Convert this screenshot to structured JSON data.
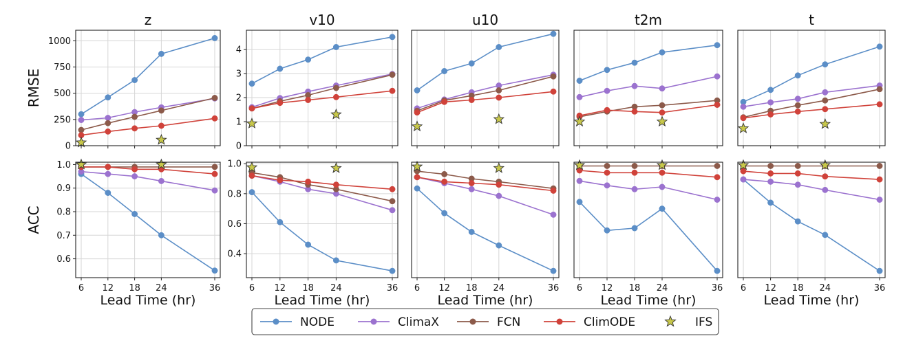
{
  "chart_data": {
    "type": "line",
    "x": [
      6,
      12,
      18,
      24,
      36
    ],
    "x_ticks": [
      "6",
      "12",
      "18",
      "24",
      "36"
    ],
    "xlabel": "Lead Time (hr)",
    "row_labels": [
      "RMSE",
      "ACC"
    ],
    "legend": {
      "placement": "bottom-center",
      "entries": [
        {
          "name": "NODE",
          "color": "#5b8ec7",
          "marker": "circle"
        },
        {
          "name": "ClimaX",
          "color": "#9b72cf",
          "marker": "circle"
        },
        {
          "name": "FCN",
          "color": "#8c5a4a",
          "marker": "circle"
        },
        {
          "name": "ClimODE",
          "color": "#d0423a",
          "marker": "circle"
        },
        {
          "name": "IFS",
          "color": "#c8c84a",
          "marker": "star"
        }
      ]
    },
    "grid": true,
    "panels": [
      {
        "variable": "z",
        "rmse": {
          "ylim": [
            0,
            1100
          ],
          "yticks": [
            0,
            250,
            500,
            750,
            1000
          ],
          "NODE": [
            300,
            460,
            625,
            875,
            1025
          ],
          "ClimaX": [
            245,
            265,
            320,
            365,
            450
          ],
          "FCN": [
            150,
            215,
            275,
            335,
            455
          ],
          "ClimODE": [
            100,
            135,
            165,
            190,
            260
          ],
          "IFS": [
            {
              "x": 6,
              "y": 30
            },
            {
              "x": 24,
              "y": 55
            }
          ]
        },
        "acc": {
          "ylim": [
            0.52,
            1.01
          ],
          "yticks": [
            0.6,
            0.7,
            0.8,
            0.9,
            1.0
          ],
          "ytick_labels": [
            "0.6",
            "0.7",
            "0.8",
            "0.9",
            "1.0"
          ],
          "NODE": [
            0.96,
            0.88,
            0.79,
            0.7,
            0.55
          ],
          "ClimaX": [
            0.97,
            0.96,
            0.95,
            0.93,
            0.89
          ],
          "FCN": [
            0.99,
            0.99,
            0.99,
            0.99,
            0.99
          ],
          "ClimODE": [
            0.99,
            0.99,
            0.98,
            0.98,
            0.96
          ],
          "IFS": [
            {
              "x": 6,
              "y": 1.0
            },
            {
              "x": 24,
              "y": 1.0
            }
          ]
        }
      },
      {
        "variable": "v10",
        "rmse": {
          "ylim": [
            0,
            4.8
          ],
          "yticks": [
            0,
            1,
            2,
            3,
            4
          ],
          "NODE": [
            2.58,
            3.2,
            3.58,
            4.1,
            4.52
          ],
          "ClimaX": [
            1.6,
            1.98,
            2.25,
            2.5,
            2.98
          ],
          "FCN": [
            1.55,
            1.85,
            2.1,
            2.4,
            2.95
          ],
          "ClimODE": [
            1.55,
            1.78,
            1.9,
            2.02,
            2.28
          ],
          "IFS": [
            {
              "x": 6,
              "y": 0.92
            },
            {
              "x": 24,
              "y": 1.3
            }
          ]
        },
        "acc": {
          "ylim": [
            0.24,
            1.01
          ],
          "yticks": [
            0.4,
            0.6,
            0.8,
            1.0
          ],
          "ytick_labels": [
            "0.4",
            "0.6",
            "0.8",
            "1.0"
          ],
          "NODE": [
            0.81,
            0.61,
            0.46,
            0.355,
            0.285
          ],
          "ClimaX": [
            0.92,
            0.88,
            0.83,
            0.8,
            0.69
          ],
          "FCN": [
            0.94,
            0.91,
            0.86,
            0.83,
            0.75
          ],
          "ClimODE": [
            0.92,
            0.89,
            0.88,
            0.86,
            0.83
          ],
          "IFS": [
            {
              "x": 6,
              "y": 0.975
            },
            {
              "x": 24,
              "y": 0.97
            }
          ]
        }
      },
      {
        "variable": "u10",
        "rmse": {
          "ylim": [
            0,
            4.8
          ],
          "yticks": [],
          "NODE": [
            2.3,
            3.1,
            3.42,
            4.1,
            4.65
          ],
          "ClimaX": [
            1.55,
            1.92,
            2.22,
            2.5,
            2.95
          ],
          "FCN": [
            1.45,
            1.88,
            2.08,
            2.3,
            2.88
          ],
          "ClimODE": [
            1.38,
            1.82,
            1.9,
            2.0,
            2.25
          ],
          "IFS": [
            {
              "x": 6,
              "y": 0.8
            },
            {
              "x": 24,
              "y": 1.1
            }
          ]
        },
        "acc": {
          "ylim": [
            0.24,
            1.01
          ],
          "yticks": [],
          "NODE": [
            0.835,
            0.67,
            0.545,
            0.455,
            0.285
          ],
          "ClimaX": [
            0.91,
            0.87,
            0.83,
            0.785,
            0.66
          ],
          "FCN": [
            0.95,
            0.93,
            0.9,
            0.88,
            0.835
          ],
          "ClimODE": [
            0.91,
            0.88,
            0.87,
            0.86,
            0.82
          ],
          "IFS": [
            {
              "x": 6,
              "y": 0.98
            },
            {
              "x": 24,
              "y": 0.97
            }
          ]
        }
      },
      {
        "variable": "t2m",
        "rmse": {
          "ylim": [
            0,
            4.8
          ],
          "yticks": [],
          "NODE": [
            2.7,
            3.15,
            3.45,
            3.88,
            4.18
          ],
          "ClimaX": [
            2.02,
            2.28,
            2.48,
            2.38,
            2.88
          ],
          "FCN": [
            1.2,
            1.42,
            1.62,
            1.68,
            1.88
          ],
          "ClimODE": [
            1.25,
            1.48,
            1.42,
            1.38,
            1.7
          ],
          "IFS": [
            {
              "x": 6,
              "y": 1.0
            },
            {
              "x": 24,
              "y": 1.0
            }
          ]
        },
        "acc": {
          "ylim": [
            0.24,
            1.01
          ],
          "yticks": [],
          "NODE": [
            0.745,
            0.555,
            0.57,
            0.7,
            0.285
          ],
          "ClimaX": [
            0.885,
            0.855,
            0.83,
            0.845,
            0.76
          ],
          "FCN": [
            0.985,
            0.985,
            0.985,
            0.985,
            0.985
          ],
          "ClimODE": [
            0.955,
            0.94,
            0.94,
            0.94,
            0.91
          ],
          "IFS": [
            {
              "x": 6,
              "y": 0.99
            },
            {
              "x": 24,
              "y": 0.99
            }
          ]
        }
      },
      {
        "variable": "t",
        "rmse": {
          "ylim": [
            0,
            4.8
          ],
          "yticks": [],
          "NODE": [
            1.82,
            2.32,
            2.92,
            3.38,
            4.12
          ],
          "ClimaX": [
            1.62,
            1.8,
            1.95,
            2.22,
            2.5
          ],
          "FCN": [
            1.18,
            1.45,
            1.68,
            1.88,
            2.35
          ],
          "ClimODE": [
            1.15,
            1.3,
            1.42,
            1.52,
            1.72
          ],
          "IFS": [
            {
              "x": 6,
              "y": 0.72
            },
            {
              "x": 24,
              "y": 0.9
            }
          ]
        },
        "acc": {
          "ylim": [
            0.24,
            1.01
          ],
          "yticks": [],
          "NODE": [
            0.895,
            0.74,
            0.615,
            0.525,
            0.285
          ],
          "ClimaX": [
            0.895,
            0.88,
            0.86,
            0.825,
            0.76
          ],
          "FCN": [
            0.985,
            0.985,
            0.985,
            0.985,
            0.985
          ],
          "ClimODE": [
            0.95,
            0.935,
            0.935,
            0.915,
            0.895
          ],
          "IFS": [
            {
              "x": 6,
              "y": 0.99
            },
            {
              "x": 24,
              "y": 0.99
            }
          ]
        }
      }
    ]
  }
}
